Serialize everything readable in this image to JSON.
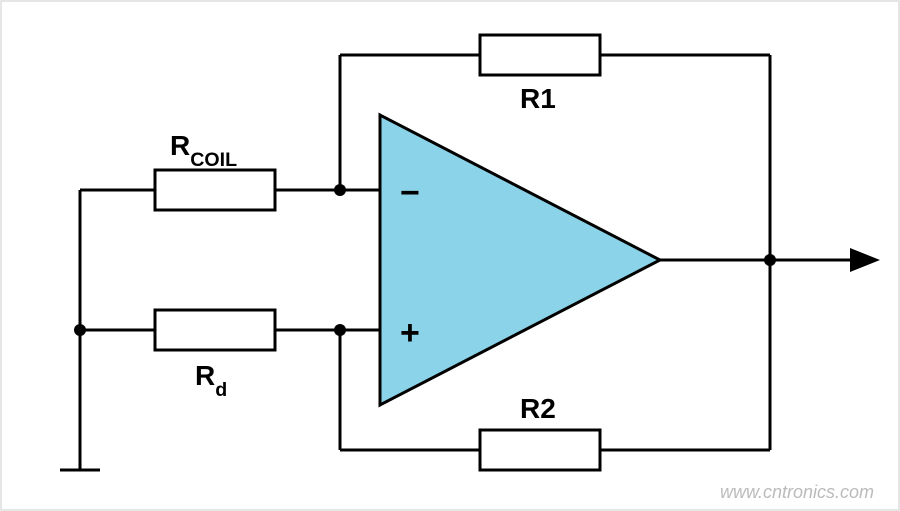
{
  "circuit": {
    "type": "opamp-circuit",
    "background_color": "#ffffff",
    "border_color": "#cccccc",
    "border_width": 1,
    "wire_color": "#000000",
    "wire_width": 3,
    "node_fill": "#000000",
    "node_radius": 6,
    "resistor_fill": "#ffffff",
    "resistor_stroke": "#000000",
    "resistor_stroke_width": 3,
    "opamp_fill": "#8bd3e8",
    "opamp_stroke": "#000000",
    "opamp_stroke_width": 3,
    "label_color": "#000000",
    "label_fontsize": 28,
    "sign_fontsize": 34
  },
  "labels": {
    "rcoil_main": "R",
    "rcoil_sub": "COIL",
    "rd_main": "R",
    "rd_sub": "d",
    "r1": "R1",
    "r2": "R2",
    "opamp_minus": "−",
    "opamp_plus": "+"
  },
  "watermark": {
    "text": "www.cntronics.com",
    "color": "#bbbbbb",
    "fontsize": 18
  }
}
